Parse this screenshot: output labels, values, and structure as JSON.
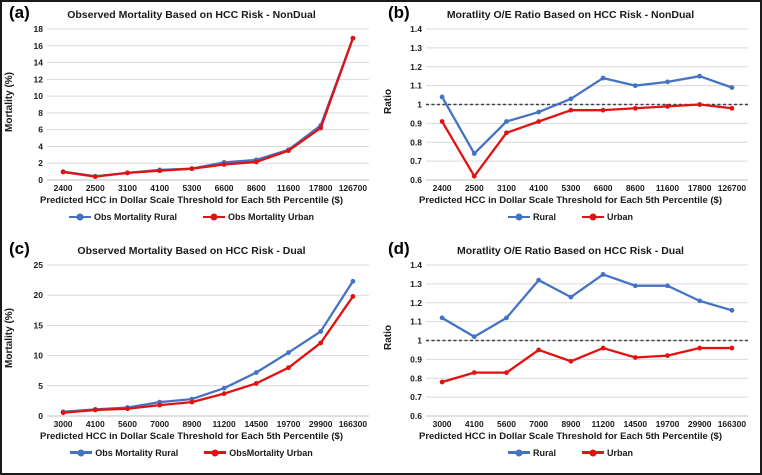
{
  "colors": {
    "rural": "#4472C4",
    "urban": "#E21212",
    "gridline": "#D9D9D9",
    "axis": "#BFBFBF",
    "ref_line": "#404040"
  },
  "chart_data": [
    {
      "type": "line",
      "panel_label": "(a)",
      "title": "Observed Mortality Based on HCC Risk - NonDual",
      "xlabel": "Predicted HCC in Dollar Scale Threshold for Each 5th Percentile ($)",
      "ylabel": "Mortality (%)",
      "ylim": [
        0,
        18
      ],
      "yticks": [
        "0",
        "2",
        "4",
        "6",
        "8",
        "10",
        "12",
        "14",
        "16",
        "18"
      ],
      "grid": true,
      "legend_position": "bottom",
      "categories": [
        "2400",
        "2500",
        "3100",
        "4100",
        "5300",
        "6600",
        "8600",
        "11600",
        "17800",
        "126700"
      ],
      "series": [
        {
          "name": "Obs Mortality Rural",
          "color": "#4472C4",
          "values": [
            1.0,
            0.45,
            0.85,
            1.2,
            1.35,
            2.1,
            2.4,
            3.6,
            6.5,
            16.9
          ]
        },
        {
          "name": "Obs Mortality Urban",
          "color": "#E21212",
          "values": [
            0.95,
            0.4,
            0.85,
            1.1,
            1.35,
            1.85,
            2.15,
            3.5,
            6.2,
            16.9
          ]
        }
      ]
    },
    {
      "type": "line",
      "panel_label": "(b)",
      "title": "Moratlity O/E Ratio Based on HCC Risk - NonDual",
      "xlabel": "Predicted HCC in Dollar Scale Threshold for Each 5th Percentile ($)",
      "ylabel": "Ratio",
      "ylim": [
        0.6,
        1.4
      ],
      "yticks": [
        "0.6",
        "0.7",
        "0.8",
        "0.9",
        "1",
        "1.1",
        "1.2",
        "1.3",
        "1.4"
      ],
      "ref_line": 1,
      "grid": true,
      "legend_position": "bottom",
      "categories": [
        "2400",
        "2500",
        "3100",
        "4100",
        "5300",
        "6600",
        "8600",
        "11600",
        "17800",
        "126700"
      ],
      "series": [
        {
          "name": "Rural",
          "color": "#4472C4",
          "values": [
            1.04,
            0.74,
            0.91,
            0.96,
            1.03,
            1.14,
            1.1,
            1.12,
            1.15,
            1.09
          ]
        },
        {
          "name": "Urban",
          "color": "#E21212",
          "values": [
            0.91,
            0.62,
            0.85,
            0.91,
            0.97,
            0.97,
            0.98,
            0.99,
            1.0,
            0.98
          ]
        }
      ]
    },
    {
      "type": "line",
      "panel_label": "(c)",
      "title": "Observed Mortality Based on HCC Risk - Dual",
      "xlabel": "Predicted HCC in Dollar Scale Threshold for Each 5th Percentile ($)",
      "ylabel": "Mortality (%)",
      "ylim": [
        0,
        25
      ],
      "yticks": [
        "0",
        "5",
        "10",
        "15",
        "20",
        "25"
      ],
      "grid": true,
      "legend_position": "bottom",
      "categories": [
        "3000",
        "4100",
        "5600",
        "7000",
        "8900",
        "11200",
        "14500",
        "19700",
        "29900",
        "166300"
      ],
      "series": [
        {
          "name": "Obs Mortality Rural",
          "color": "#4472C4",
          "values": [
            0.7,
            1.1,
            1.4,
            2.3,
            2.8,
            4.6,
            7.2,
            10.5,
            14.0,
            22.3
          ]
        },
        {
          "name": "ObsMortality Urban",
          "color": "#E21212",
          "values": [
            0.55,
            1.0,
            1.2,
            1.8,
            2.3,
            3.7,
            5.4,
            8.0,
            12.1,
            19.8
          ]
        }
      ]
    },
    {
      "type": "line",
      "panel_label": "(d)",
      "title": "Moratlity O/E Ratio Based on HCC Risk - Dual",
      "xlabel": "Predicted HCC in Dollar Scale Threshold for Each 5th Percentile ($)",
      "ylabel": "Ratio",
      "ylim": [
        0.6,
        1.4
      ],
      "yticks": [
        "0.6",
        "0.7",
        "0.8",
        "0.9",
        "1",
        "1.1",
        "1.2",
        "1.3",
        "1.4"
      ],
      "ref_line": 1,
      "grid": true,
      "legend_position": "bottom",
      "categories": [
        "3000",
        "4100",
        "5600",
        "7000",
        "8900",
        "11200",
        "14500",
        "19700",
        "29900",
        "166300"
      ],
      "series": [
        {
          "name": "Rural",
          "color": "#4472C4",
          "values": [
            1.12,
            1.02,
            1.12,
            1.32,
            1.23,
            1.35,
            1.29,
            1.29,
            1.21,
            1.16
          ]
        },
        {
          "name": "Urban",
          "color": "#E21212",
          "values": [
            0.78,
            0.83,
            0.83,
            0.95,
            0.89,
            0.96,
            0.91,
            0.92,
            0.96,
            0.96
          ]
        }
      ]
    }
  ]
}
